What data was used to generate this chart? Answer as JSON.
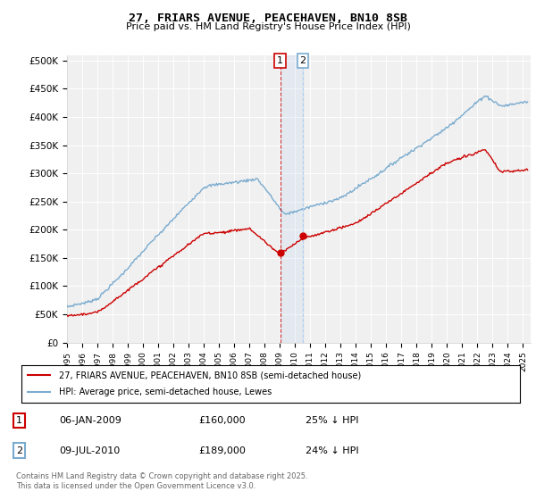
{
  "title": "27, FRIARS AVENUE, PEACEHAVEN, BN10 8SB",
  "subtitle": "Price paid vs. HM Land Registry's House Price Index (HPI)",
  "ylabel_ticks": [
    "£0",
    "£50K",
    "£100K",
    "£150K",
    "£200K",
    "£250K",
    "£300K",
    "£350K",
    "£400K",
    "£450K",
    "£500K"
  ],
  "ytick_values": [
    0,
    50000,
    100000,
    150000,
    200000,
    250000,
    300000,
    350000,
    400000,
    450000,
    500000
  ],
  "ylim": [
    0,
    510000
  ],
  "xlim_start": 1995.0,
  "xlim_end": 2025.5,
  "hpi_color": "#7aabcf",
  "price_color": "#cc0000",
  "transaction1_date": 2009.02,
  "transaction1_price": 160000,
  "transaction2_date": 2010.52,
  "transaction2_price": 189000,
  "legend_line1": "27, FRIARS AVENUE, PEACEHAVEN, BN10 8SB (semi-detached house)",
  "legend_line2": "HPI: Average price, semi-detached house, Lewes",
  "table_row1": [
    "1",
    "06-JAN-2009",
    "£160,000",
    "25% ↓ HPI"
  ],
  "table_row2": [
    "2",
    "09-JUL-2010",
    "£189,000",
    "24% ↓ HPI"
  ],
  "footer": "Contains HM Land Registry data © Crown copyright and database right 2025.\nThis data is licensed under the Open Government Licence v3.0.",
  "background_color": "#ffffff",
  "plot_bg_color": "#f0f0f0"
}
